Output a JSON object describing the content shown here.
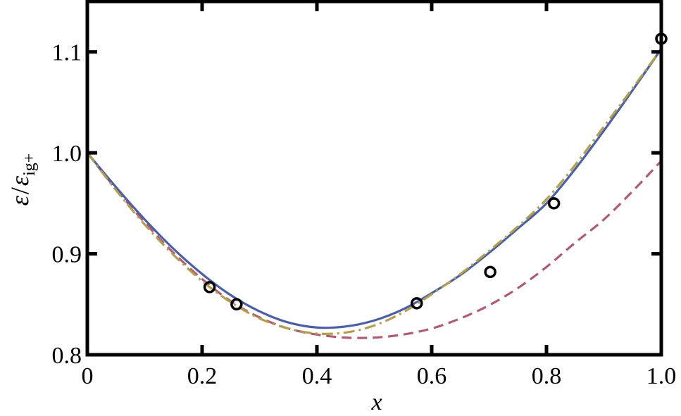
{
  "chart_data": {
    "type": "line",
    "title": "",
    "xlabel": "x",
    "ylabel": {
      "symbol": "ε",
      "slash": "/",
      "denominator_symbol": "ε",
      "denominator_subscript": "ig+"
    },
    "xlim": [
      0.0,
      1.0
    ],
    "ylim": [
      0.8,
      1.15
    ],
    "x_ticks": [
      0.0,
      0.2,
      0.4,
      0.6,
      0.8,
      1.0
    ],
    "x_tick_labels": [
      "0",
      "0.2",
      "0.4",
      "0.6",
      "0.8",
      "1.0"
    ],
    "y_ticks": [
      0.8,
      0.9,
      1.0,
      1.1
    ],
    "y_tick_labels": [
      "0.8",
      "0.9",
      "1.0",
      "1.1"
    ],
    "grid": false,
    "legend": "none",
    "series": [
      {
        "style": "solid",
        "color": "#4A5FA8",
        "x": [
          0.0,
          0.05,
          0.1,
          0.15,
          0.2,
          0.25,
          0.3,
          0.35,
          0.4,
          0.45,
          0.5,
          0.55,
          0.6,
          0.65,
          0.7,
          0.75,
          0.8,
          0.85,
          0.9,
          0.95,
          1.0
        ],
        "y": [
          1.0,
          0.966,
          0.934,
          0.905,
          0.88,
          0.859,
          0.843,
          0.832,
          0.827,
          0.828,
          0.834,
          0.845,
          0.861,
          0.879,
          0.901,
          0.925,
          0.95,
          0.984,
          1.022,
          1.062,
          1.103
        ]
      },
      {
        "style": "dashed",
        "color": "#B05A7A",
        "x": [
          0.0,
          0.05,
          0.1,
          0.15,
          0.2,
          0.25,
          0.3,
          0.35,
          0.4,
          0.45,
          0.5,
          0.55,
          0.6,
          0.65,
          0.7,
          0.75,
          0.8,
          0.85,
          0.9,
          0.95,
          1.0
        ],
        "y": [
          1.0,
          0.964,
          0.931,
          0.901,
          0.875,
          0.853,
          0.837,
          0.826,
          0.82,
          0.817,
          0.817,
          0.82,
          0.826,
          0.836,
          0.849,
          0.866,
          0.887,
          0.911,
          0.934,
          0.962,
          0.992
        ]
      },
      {
        "style": "dashdot",
        "color": "#B2A04E",
        "x": [
          0.0,
          0.05,
          0.1,
          0.15,
          0.2,
          0.25,
          0.3,
          0.35,
          0.4,
          0.45,
          0.5,
          0.55,
          0.6,
          0.65,
          0.7,
          0.75,
          0.8,
          0.85,
          0.9,
          0.95,
          1.0
        ],
        "y": [
          1.0,
          0.963,
          0.929,
          0.899,
          0.873,
          0.852,
          0.836,
          0.826,
          0.821,
          0.822,
          0.829,
          0.842,
          0.86,
          0.88,
          0.903,
          0.927,
          0.954,
          0.988,
          1.026,
          1.064,
          1.103
        ]
      },
      {
        "style": "markers",
        "marker": "open-circle",
        "color": "#000000",
        "x": [
          0.213,
          0.26,
          0.574,
          0.702,
          0.813,
          1.0
        ],
        "y": [
          0.867,
          0.85,
          0.851,
          0.882,
          0.95,
          1.113
        ]
      }
    ]
  }
}
